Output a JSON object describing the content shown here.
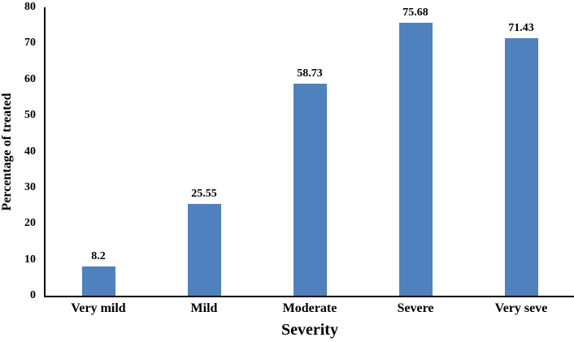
{
  "chart_data": {
    "type": "bar",
    "title": "",
    "xlabel": "Severity",
    "ylabel": "Percentage of treated",
    "categories": [
      "Very mild",
      "Mild",
      "Moderate",
      "Severe",
      "Very seve"
    ],
    "values": [
      8.2,
      25.55,
      58.73,
      75.68,
      71.43
    ],
    "value_labels": [
      "8.2",
      "25.55",
      "58.73",
      "75.68",
      "71.43"
    ],
    "ylim": [
      0,
      80
    ],
    "yticks": [
      0,
      10,
      20,
      30,
      40,
      50,
      60,
      70,
      80
    ],
    "grid": false,
    "legend": false,
    "colors": {
      "bar_fill": "#4E81BD",
      "axis_line": "#000000",
      "text": "#000000",
      "background": "#ffffff"
    }
  }
}
